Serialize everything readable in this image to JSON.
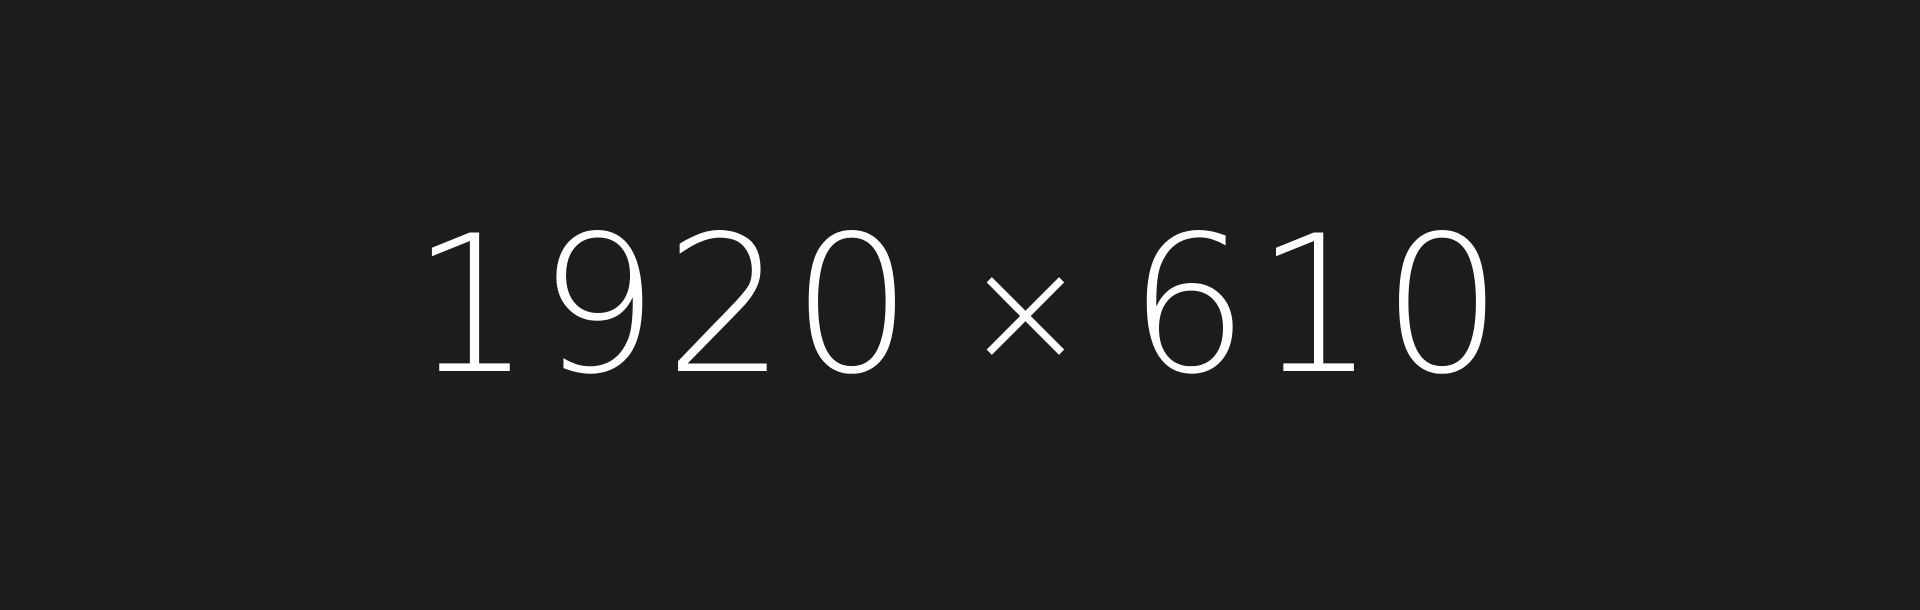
{
  "placeholder": {
    "width_text": "1920",
    "separator": "×",
    "height_text": "610",
    "background_color": "#1c1c1c",
    "text_color": "#ffffff"
  }
}
